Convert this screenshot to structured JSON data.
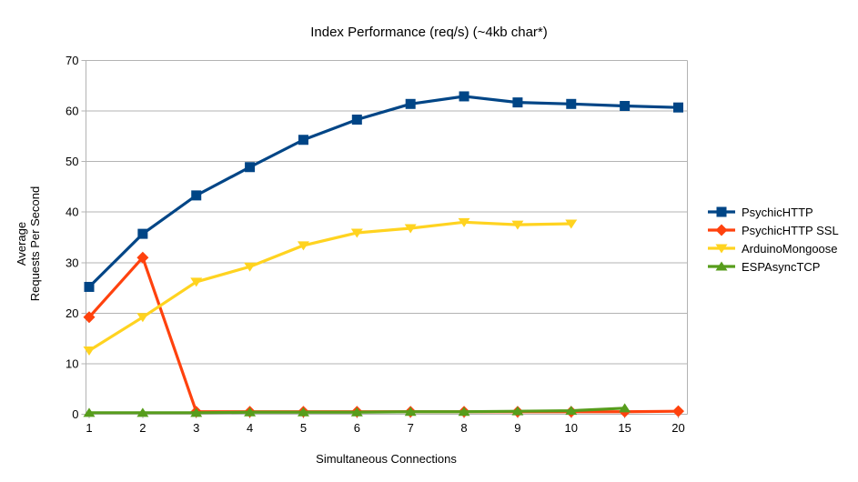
{
  "chart_data": {
    "type": "line",
    "title": "Index Performance (req/s) (~4kb char*)",
    "xlabel": "Simultaneous Connections",
    "ylabel_lines": [
      "Average",
      "Requests Per Second"
    ],
    "categories": [
      "1",
      "2",
      "3",
      "4",
      "5",
      "6",
      "7",
      "8",
      "9",
      "10",
      "15",
      "20"
    ],
    "ylim": [
      0,
      70
    ],
    "yticks": [
      0,
      10,
      20,
      30,
      40,
      50,
      60,
      70
    ],
    "grid": "horizontal",
    "legend_position": "right",
    "series": [
      {
        "name": "PsychicHTTP",
        "color": "#004586",
        "marker": "square",
        "values": [
          25.2,
          35.7,
          43.3,
          48.9,
          54.3,
          58.3,
          61.4,
          62.9,
          61.7,
          61.4,
          61.0,
          60.7
        ]
      },
      {
        "name": "PsychicHTTP SSL",
        "color": "#FF420E",
        "marker": "diamond",
        "values": [
          19.2,
          31.0,
          0.5,
          0.5,
          0.5,
          0.5,
          0.5,
          0.5,
          0.5,
          0.5,
          0.5,
          0.6
        ]
      },
      {
        "name": "ArduinoMongoose",
        "color": "#FFD320",
        "marker": "triangle-down",
        "values": [
          12.6,
          19.2,
          26.2,
          29.2,
          33.4,
          35.9,
          36.8,
          38.0,
          37.5,
          37.7,
          null,
          null
        ]
      },
      {
        "name": "ESPAsyncTCP",
        "color": "#579D1C",
        "marker": "triangle-up",
        "values": [
          0.3,
          0.3,
          0.3,
          0.4,
          0.4,
          0.4,
          0.5,
          0.5,
          0.6,
          0.7,
          1.2,
          null
        ]
      }
    ],
    "axis_color": "#B3B3B3",
    "text_color": "#000000",
    "background": "#FFFFFF"
  }
}
